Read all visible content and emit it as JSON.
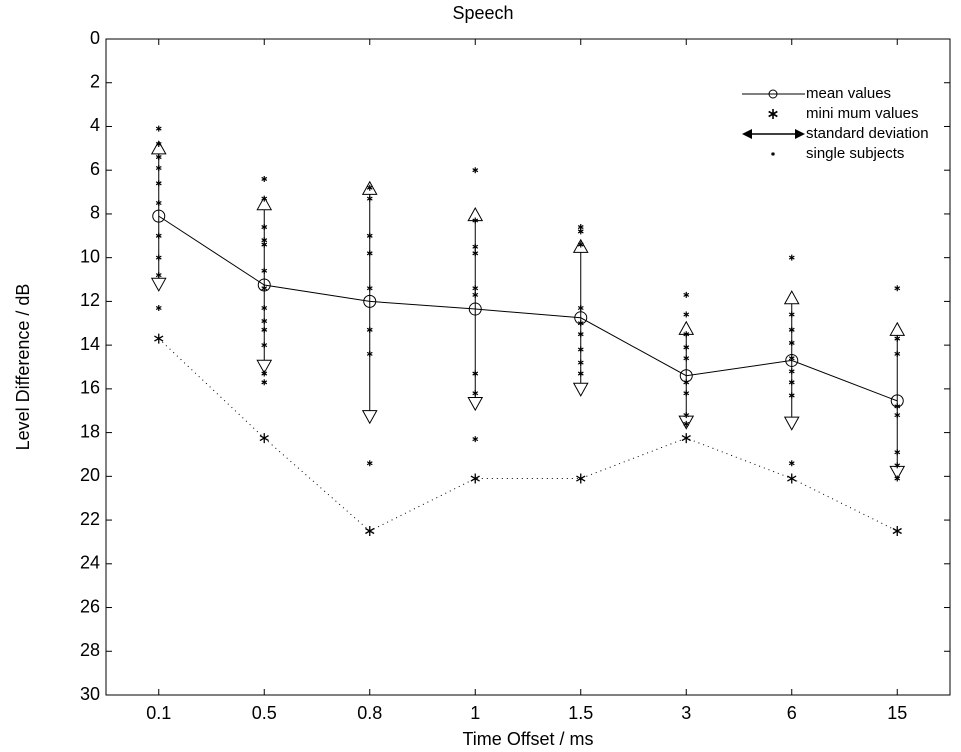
{
  "chart_data": {
    "type": "line",
    "title": "Speech",
    "x_label": "Time Offset / ms",
    "y_label": "Level Difference / dB",
    "categories": [
      "0.1",
      "0.5",
      "0.8",
      "1",
      "1.5",
      "3",
      "6",
      "15"
    ],
    "ylim": [
      0,
      30
    ],
    "y_inverted": true,
    "yticks": [
      0,
      2,
      4,
      6,
      8,
      10,
      12,
      14,
      16,
      18,
      20,
      22,
      24,
      26,
      28,
      30
    ],
    "legend": "upper right",
    "series": [
      {
        "name": "mean values",
        "color": "#000000",
        "marker": "circle",
        "line": "solid",
        "values": [
          8.1,
          11.25,
          12.0,
          12.35,
          12.75,
          15.4,
          14.7,
          16.55
        ]
      },
      {
        "name": "mini mum values",
        "color": "#000000",
        "marker": "asterisk",
        "line": "dotted",
        "values": [
          13.7,
          18.25,
          22.5,
          20.1,
          20.1,
          18.25,
          20.1,
          22.5
        ]
      },
      {
        "name": "standard deviation",
        "color": "#000000",
        "marker": "triangle",
        "low": [
          5.0,
          7.55,
          6.85,
          8.05,
          9.5,
          13.25,
          11.85,
          13.3
        ],
        "high": [
          11.2,
          14.95,
          17.25,
          16.65,
          16.0,
          17.5,
          17.55,
          19.8
        ]
      },
      {
        "name": "single subjects",
        "color": "#000000",
        "marker": "small-asterisk",
        "values": [
          [
            4.1,
            4.8,
            5.4,
            5.9,
            6.6,
            7.5,
            9.0,
            10.0,
            10.8,
            12.3
          ],
          [
            6.4,
            7.3,
            8.6,
            9.2,
            9.4,
            10.6,
            11.4,
            12.3,
            12.9,
            13.3,
            14.0,
            15.3,
            15.7
          ],
          [
            6.8,
            7.3,
            9.0,
            9.8,
            11.4,
            13.3,
            14.4,
            19.4
          ],
          [
            6.0,
            8.3,
            9.5,
            9.8,
            11.4,
            11.7,
            15.3,
            16.2,
            18.3
          ],
          [
            8.6,
            8.8,
            9.4,
            12.3,
            13.0,
            13.5,
            14.2,
            14.8,
            15.3
          ],
          [
            11.7,
            12.6,
            13.5,
            14.1,
            14.6,
            15.7,
            16.2,
            17.2,
            17.6
          ],
          [
            10.0,
            12.6,
            13.3,
            13.9,
            14.6,
            15.2,
            15.7,
            16.3,
            19.4
          ],
          [
            11.4,
            13.7,
            14.4,
            16.8,
            17.2,
            18.9,
            19.5,
            20.1
          ]
        ]
      }
    ]
  }
}
